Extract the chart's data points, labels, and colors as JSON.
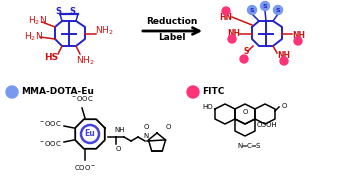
{
  "bg_color": "#ffffff",
  "blue": "#2222cc",
  "red": "#cc1111",
  "black": "#000000",
  "eu_ring_color": "#4444dd",
  "mma_ball_color": "#7799ee",
  "fitc_ball_color": "#ff3377",
  "reduction_text": "Reduction",
  "label_text": "Label",
  "mma_label": "MMA-DOTA-Eu",
  "fitc_label": "FITC"
}
